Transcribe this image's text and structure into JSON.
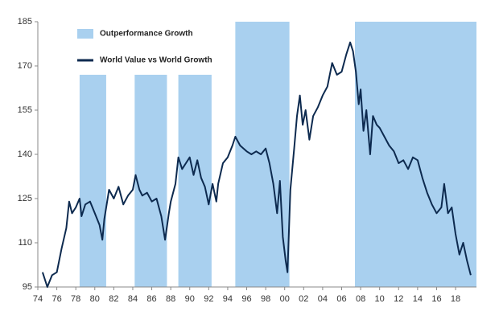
{
  "chart_data": {
    "type": "line",
    "legend": "top-left",
    "bands": {
      "name": "Outperformance Growth",
      "color": "#a9d0ef",
      "ranges": [
        [
          1978.4,
          1981.2,
          167
        ],
        [
          1984.2,
          1987.6,
          167
        ],
        [
          1988.8,
          1992.3,
          167
        ],
        [
          1994.8,
          2000.5,
          185
        ],
        [
          2007.4,
          2020.2,
          185
        ]
      ]
    },
    "series": [
      {
        "name": "World Value vs World Growth",
        "color": "#0d2a4f",
        "x": [
          1974.5,
          1975,
          1975.5,
          1976,
          1976.5,
          1977,
          1977.3,
          1977.6,
          1978,
          1978.4,
          1978.6,
          1979,
          1979.5,
          1980,
          1980.5,
          1980.8,
          1981,
          1981.5,
          1982,
          1982.5,
          1983,
          1983.5,
          1984,
          1984.3,
          1984.7,
          1985,
          1985.5,
          1986,
          1986.5,
          1987,
          1987.4,
          1987.8,
          1988,
          1988.5,
          1988.8,
          1989.2,
          1989.6,
          1990,
          1990.4,
          1990.8,
          1991.2,
          1991.6,
          1992,
          1992.4,
          1992.8,
          1993,
          1993.5,
          1994,
          1994.5,
          1994.8,
          1995.3,
          1996,
          1996.5,
          1997,
          1997.5,
          1998,
          1998.4,
          1998.8,
          1999.2,
          1999.5,
          1999.8,
          2000.1,
          2000.3,
          2000.6,
          2001,
          2001.3,
          2001.6,
          2001.9,
          2002.2,
          2002.6,
          2003,
          2003.5,
          2004,
          2004.5,
          2005,
          2005.5,
          2006,
          2006.5,
          2006.9,
          2007.2,
          2007.5,
          2007.8,
          2008,
          2008.3,
          2008.6,
          2009,
          2009.3,
          2009.7,
          2010,
          2010.5,
          2011,
          2011.5,
          2012,
          2012.5,
          2013,
          2013.5,
          2014,
          2014.5,
          2015,
          2015.5,
          2016,
          2016.5,
          2016.8,
          2017.2,
          2017.6,
          2018,
          2018.4,
          2018.8,
          2019.2,
          2019.6
        ],
        "values": [
          100,
          95,
          99,
          100,
          108,
          115,
          124,
          120,
          122,
          125,
          119,
          123,
          124,
          120,
          116,
          111,
          118,
          128,
          125,
          129,
          123,
          126,
          128,
          133,
          128,
          126,
          127,
          124,
          125,
          119,
          111,
          120,
          124,
          130,
          139,
          135,
          137,
          139,
          133,
          138,
          132,
          129,
          123,
          130,
          124,
          130,
          137,
          139,
          143,
          146,
          143,
          141,
          140,
          141,
          140,
          142,
          137,
          130,
          120,
          131,
          112,
          104,
          100,
          128,
          142,
          153,
          160,
          150,
          155,
          145,
          153,
          156,
          160,
          163,
          171,
          167,
          168,
          174,
          178,
          175,
          168,
          157,
          162,
          148,
          155,
          140,
          153,
          150,
          149,
          146,
          143,
          141,
          137,
          138,
          135,
          139,
          138,
          132,
          127,
          123,
          120,
          122,
          130,
          120,
          122,
          113,
          106,
          110,
          104,
          99
        ]
      }
    ],
    "xlim": [
      1974,
      2020.2
    ],
    "xticks": [
      {
        "value": 1974,
        "label": "74"
      },
      {
        "value": 1976,
        "label": "76"
      },
      {
        "value": 1978,
        "label": "78"
      },
      {
        "value": 1980,
        "label": "80"
      },
      {
        "value": 1982,
        "label": "82"
      },
      {
        "value": 1984,
        "label": "84"
      },
      {
        "value": 1986,
        "label": "86"
      },
      {
        "value": 1988,
        "label": "88"
      },
      {
        "value": 1990,
        "label": "90"
      },
      {
        "value": 1992,
        "label": "92"
      },
      {
        "value": 1994,
        "label": "94"
      },
      {
        "value": 1996,
        "label": "96"
      },
      {
        "value": 1998,
        "label": "98"
      },
      {
        "value": 2000,
        "label": "00"
      },
      {
        "value": 2002,
        "label": "02"
      },
      {
        "value": 2004,
        "label": "04"
      },
      {
        "value": 2006,
        "label": "06"
      },
      {
        "value": 2008,
        "label": "08"
      },
      {
        "value": 2010,
        "label": "10"
      },
      {
        "value": 2012,
        "label": "12"
      },
      {
        "value": 2014,
        "label": "14"
      },
      {
        "value": 2016,
        "label": "16"
      },
      {
        "value": 2018,
        "label": "18"
      }
    ],
    "ylim": [
      95,
      185
    ],
    "yticks": [
      95,
      110,
      125,
      140,
      155,
      170,
      185
    ]
  }
}
